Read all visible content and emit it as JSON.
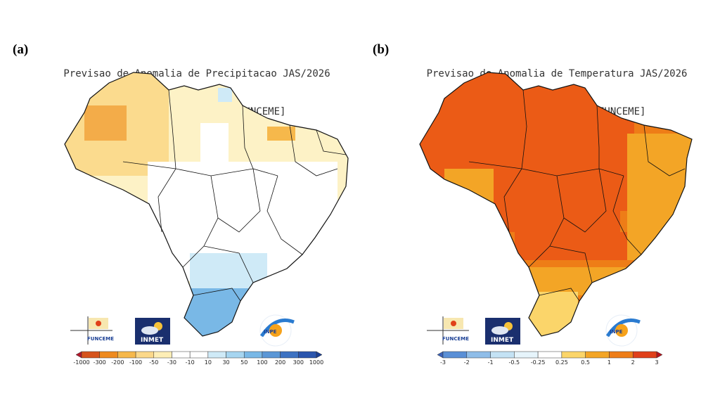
{
  "panels": [
    {
      "letter": "(a)",
      "title_line1": "Previsao de Anomalia de Precipitacao JAS/2026",
      "title_line2": "media [CPTEC1.2+INMET+FUNCEME]",
      "colorbar": {
        "labels": [
          "-1000",
          "-300",
          "-200",
          "-100",
          "-50",
          "-30",
          "-10",
          "10",
          "30",
          "50",
          "100",
          "200",
          "300",
          "1000"
        ],
        "colors": [
          "#b2182b",
          "#d6541d",
          "#ee8a1e",
          "#f6b84b",
          "#fbd88a",
          "#fdeeb6",
          "#ffffff",
          "#ffffff",
          "#cfeaf7",
          "#a6d5f0",
          "#79b8e6",
          "#5b97d6",
          "#3d72c2",
          "#2a55ad",
          "#1a3f94"
        ]
      },
      "logos": {
        "funceme": "FUNCEME",
        "inmet": "INMET",
        "inpe": "INPE"
      }
    },
    {
      "letter": "(b)",
      "title_line1": "Previsao de Anomalia de Temperatura JAS/2026",
      "title_line2": "media [CPTEC1.2+INMET+FUNCEME]",
      "colorbar": {
        "labels": [
          "-3",
          "-2",
          "-1",
          "-0.5",
          "-0.25",
          "0.25",
          "0.5",
          "1",
          "2",
          "3"
        ],
        "colors": [
          "#3b62b8",
          "#5a8fd6",
          "#8fbde8",
          "#c4e2f4",
          "#e6f4fb",
          "#ffffff",
          "#fbd56a",
          "#f3a526",
          "#ee7d17",
          "#e0401a",
          "#b7141d"
        ]
      },
      "logos": {
        "funceme": "FUNCEME",
        "inmet": "INMET",
        "inpe": "INPE"
      }
    }
  ]
}
